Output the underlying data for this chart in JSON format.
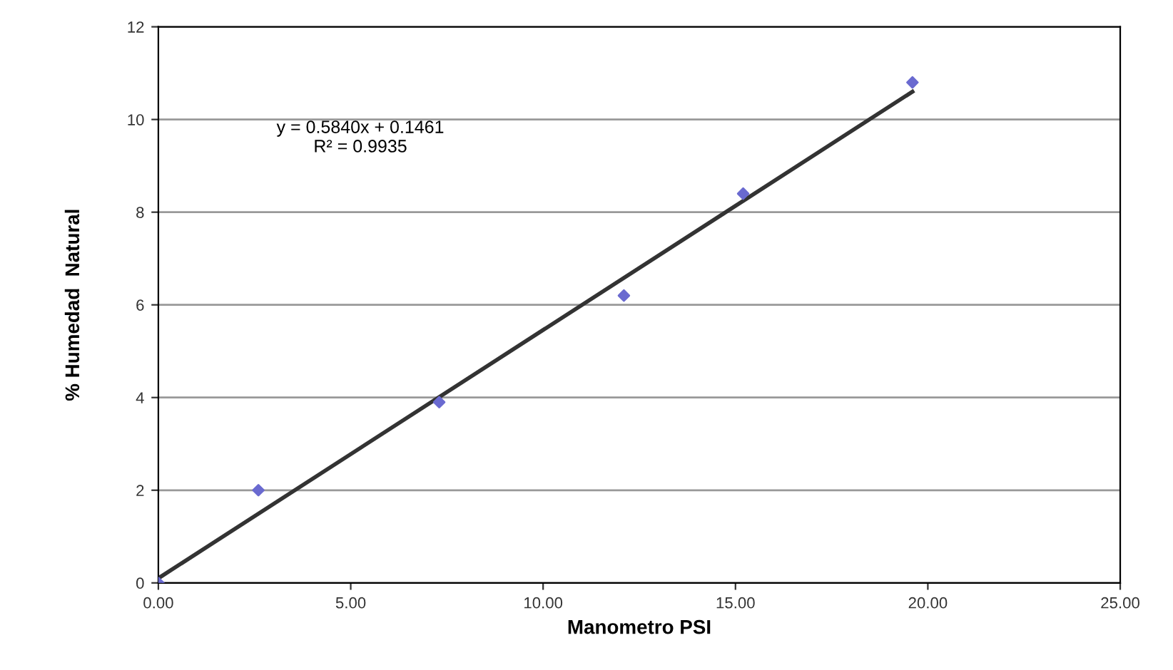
{
  "chart_data": {
    "type": "scatter",
    "xlabel": "Manometro PSI",
    "ylabel": "% Humedad  Natural",
    "annotations": [
      "y = 0.5840x + 0.1461\nR² = 0.9935"
    ],
    "series": [
      {
        "color": "#6a6ad0",
        "marker": "diamond",
        "x": [
          0,
          2.6,
          7.3,
          12.1,
          15.2,
          19.6
        ],
        "values": [
          0,
          2.0,
          3.9,
          6.2,
          8.4,
          10.8
        ]
      },
      {
        "type": "line",
        "color": "#333333",
        "x": [
          0,
          19.6
        ],
        "values": [
          0.1,
          10.6
        ]
      }
    ],
    "xlim": [
      0,
      25
    ],
    "ylim": [
      0,
      12
    ],
    "xticks": [
      {
        "value": 0,
        "label": "0.00"
      },
      {
        "value": 5,
        "label": "5.00"
      },
      {
        "value": 10,
        "label": "10.00"
      },
      {
        "value": 15,
        "label": "15.00"
      },
      {
        "value": 20,
        "label": "20.00"
      },
      {
        "value": 25,
        "label": "25.00"
      }
    ],
    "yticks": [
      0,
      2,
      4,
      6,
      8,
      10,
      12
    ],
    "grid": "y"
  }
}
